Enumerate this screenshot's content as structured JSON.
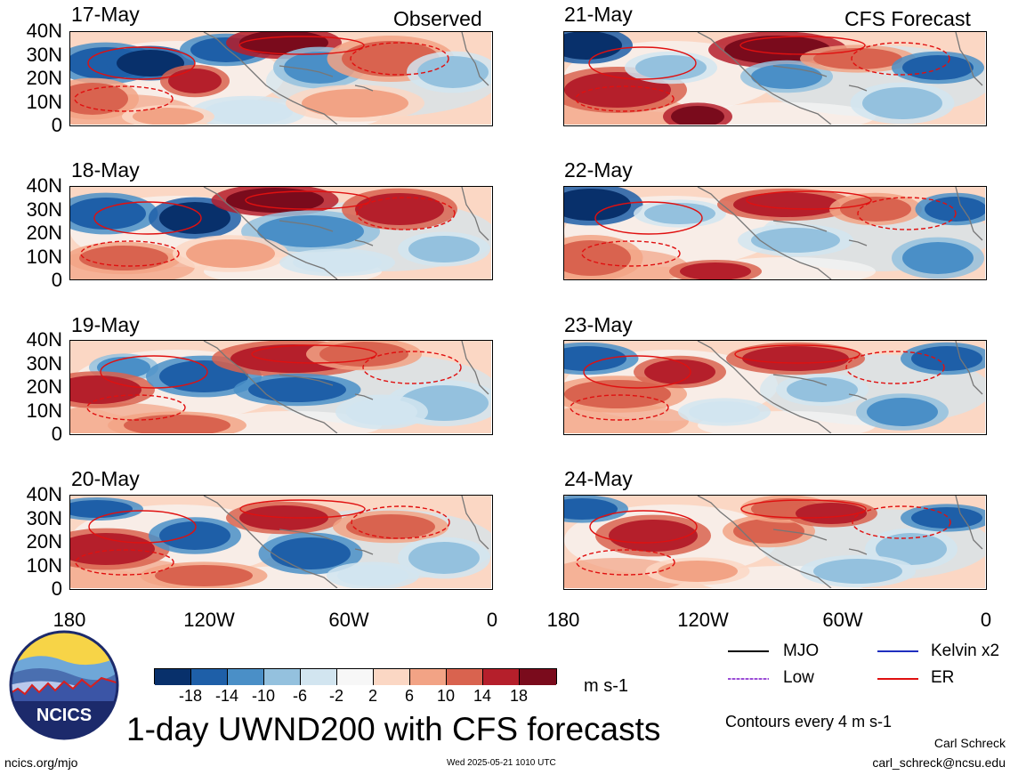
{
  "headers": {
    "left": "Observed",
    "right": "CFS Forecast"
  },
  "panels_left": [
    {
      "date": "17-May"
    },
    {
      "date": "18-May"
    },
    {
      "date": "19-May"
    },
    {
      "date": "20-May"
    }
  ],
  "panels_right": [
    {
      "date": "21-May"
    },
    {
      "date": "22-May"
    },
    {
      "date": "23-May"
    },
    {
      "date": "24-May"
    }
  ],
  "y_ticks": [
    "40N",
    "30N",
    "20N",
    "10N",
    "0"
  ],
  "x_ticks": [
    "180",
    "120W",
    "60W",
    "0"
  ],
  "colorbar": {
    "colors": [
      "#08306b",
      "#1e5fa8",
      "#4a8fc7",
      "#94c1de",
      "#d2e5f0",
      "#f7f7f7",
      "#fbd7c4",
      "#f2a385",
      "#d9634f",
      "#b51f2b",
      "#7a0b1c"
    ],
    "labels": [
      "-18",
      "-14",
      "-10",
      "-6",
      "-2",
      "2",
      "6",
      "10",
      "14",
      "18"
    ],
    "unit": "m s-1"
  },
  "legend": {
    "mjo": {
      "label": "MJO",
      "color": "#000000"
    },
    "kelvin": {
      "label": "Kelvin x2",
      "color": "#1f2fbf"
    },
    "low": {
      "label": "Low",
      "color": "#9b4dd6"
    },
    "er": {
      "label": "ER",
      "color": "#e01010"
    },
    "contours_note": "Contours every 4 m s-1"
  },
  "logo": {
    "text": "NCICS"
  },
  "title": "1-day UWND200 with CFS forecasts",
  "footer": {
    "url": "ncics.org/mjo",
    "timestamp": "Wed 2025-05-21 1010 UTC",
    "author": "Carl Schreck",
    "email": "carl_schreck@ncsu.edu"
  }
}
